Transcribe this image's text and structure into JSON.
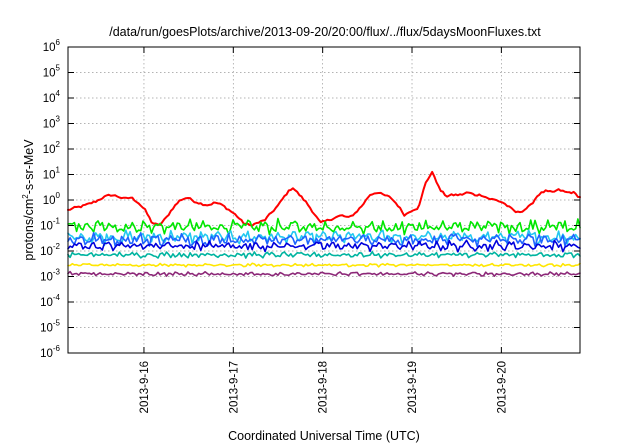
{
  "chart_data": {
    "type": "line",
    "title": "/data/run/goesPlots/archive/2013-09-20/20:00/flux/../flux/5daysMoonFluxes.txt",
    "xlabel": "Coordinated Universal Time (UTC)",
    "ylabel": {
      "prefix": "protons/cm",
      "sup": "2",
      "suffix": "-s-sr-MeV"
    },
    "y_scale": "log",
    "ylim_exponents": [
      -6,
      6
    ],
    "y_ticks": [
      {
        "base": "10",
        "exp": "-6",
        "e": -6
      },
      {
        "base": "10",
        "exp": "-5",
        "e": -5
      },
      {
        "base": "10",
        "exp": "-4",
        "e": -4
      },
      {
        "base": "10",
        "exp": "-3",
        "e": -3
      },
      {
        "base": "10",
        "exp": "-2",
        "e": -2
      },
      {
        "base": "10",
        "exp": "-1",
        "e": -1
      },
      {
        "base": "10",
        "exp": "0",
        "e": 0
      },
      {
        "base": "10",
        "exp": "1",
        "e": 1
      },
      {
        "base": "10",
        "exp": "2",
        "e": 2
      },
      {
        "base": "10",
        "exp": "3",
        "e": 3
      },
      {
        "base": "10",
        "exp": "4",
        "e": 4
      },
      {
        "base": "10",
        "exp": "5",
        "e": 5
      },
      {
        "base": "10",
        "exp": "6",
        "e": 6
      }
    ],
    "x_range_days": [
      15.15,
      20.88
    ],
    "x_ticks": [
      {
        "label": "2013-9-16",
        "day": 16
      },
      {
        "label": "2013-9-17",
        "day": 17
      },
      {
        "label": "2013-9-18",
        "day": 18
      },
      {
        "label": "2013-9-19",
        "day": 19
      },
      {
        "label": "2013-9-20",
        "day": 20
      }
    ],
    "grid": true,
    "series": [
      {
        "color": "#ff0000",
        "kind": "red",
        "log_y": [
          -0.4,
          -0.3,
          -0.25,
          -0.15,
          -0.05,
          0.1,
          0.2,
          0.15,
          0.05,
          0.1,
          -0.1,
          -0.4,
          -0.9,
          -1.0,
          -0.7,
          -0.3,
          0.0,
          0.1,
          -0.05,
          -0.15,
          -0.2,
          -0.1,
          -0.2,
          -0.4,
          -0.6,
          -0.9,
          -1.0,
          -0.9,
          -0.8,
          -0.5,
          -0.2,
          0.2,
          0.5,
          0.2,
          -0.1,
          -0.5,
          -0.9,
          -0.8,
          -0.7,
          -0.6,
          -0.7,
          -0.5,
          -0.2,
          0.2,
          0.3,
          0.2,
          0.1,
          -0.2,
          -0.6,
          -0.4,
          -0.3,
          0.7,
          1.1,
          0.4,
          0.15,
          0.2,
          0.2,
          0.3,
          0.2,
          0.2,
          0.05,
          0.0,
          -0.1,
          -0.3,
          -0.5,
          -0.4,
          -0.2,
          0.2,
          0.35,
          0.3,
          0.4,
          0.3,
          0.3,
          0.1
        ]
      },
      {
        "color": "#00e600",
        "kind": "noisy",
        "base": -1.05,
        "amp": 0.32
      },
      {
        "color": "#22c8f0",
        "kind": "noisy",
        "base": -1.45,
        "amp": 0.3
      },
      {
        "color": "#1e64ff",
        "kind": "noisy",
        "base": -1.55,
        "amp": 0.28
      },
      {
        "color": "#0000dc",
        "kind": "noisy",
        "base": -1.8,
        "amp": 0.22
      },
      {
        "color": "#00b4a0",
        "kind": "noisy",
        "base": -2.15,
        "amp": 0.12
      },
      {
        "color": "#ffe600",
        "kind": "noisy",
        "base": -2.55,
        "amp": 0.07
      },
      {
        "color": "#8c2878",
        "kind": "noisy",
        "base": -2.9,
        "amp": 0.09
      }
    ]
  }
}
